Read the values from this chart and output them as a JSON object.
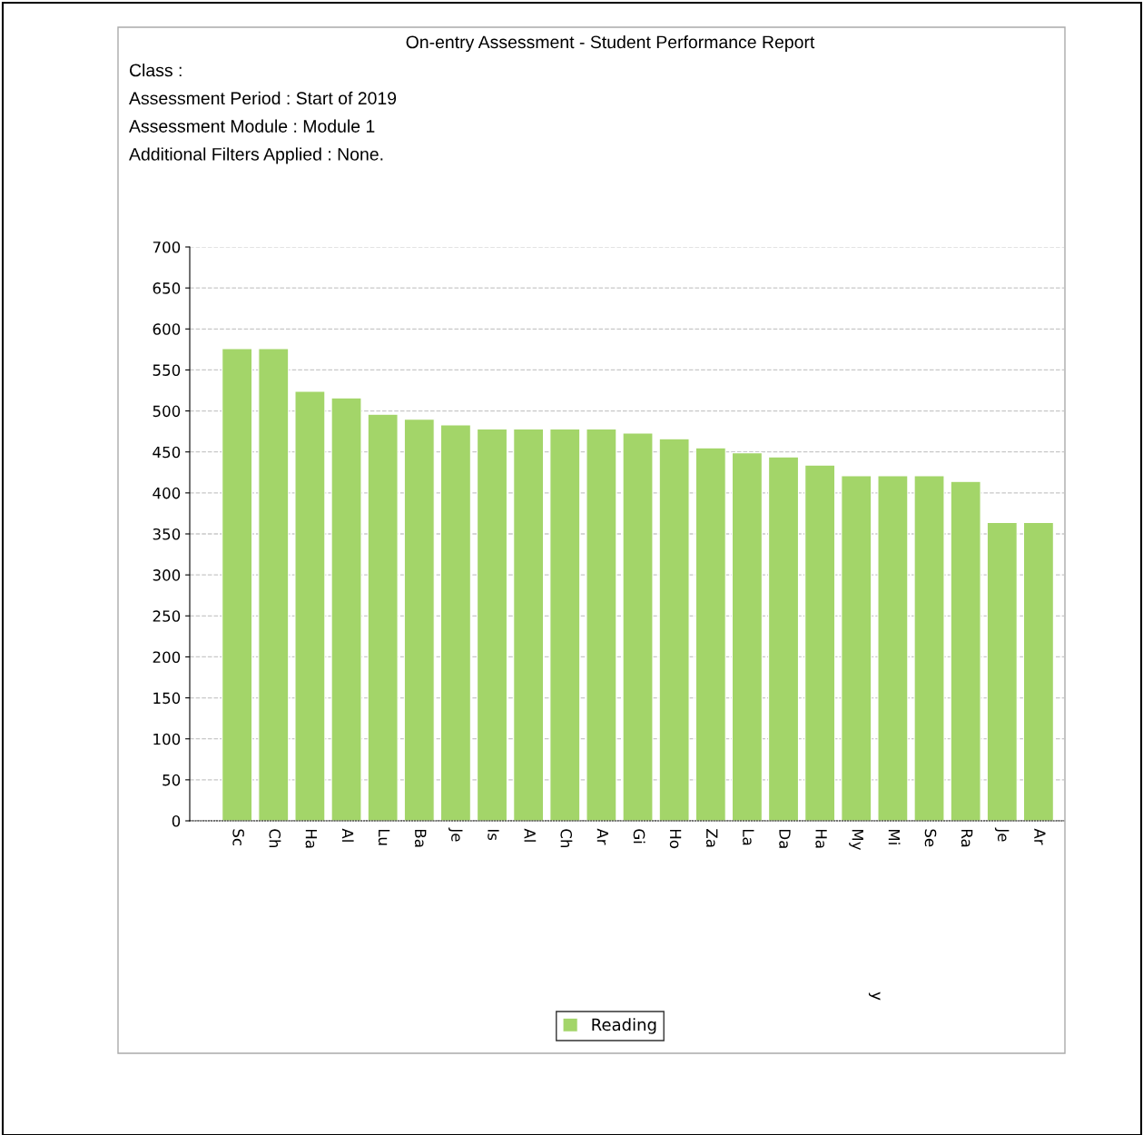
{
  "chart_data": {
    "type": "bar",
    "title": "On-entry Assessment - Student Performance Report",
    "subtitle": "Class :\nAssessment Period : Start of 2019\nAssessment Module : Module 1\nAdditional Filters Applied : None.",
    "categories": [
      "Sc",
      "Ch",
      "Ha",
      "Al",
      "Lu",
      "Ba",
      "Je",
      "Is",
      "Al",
      "Ch",
      "Ar",
      "Gi",
      "Ho",
      "Za",
      "La",
      "Da",
      "Ha",
      "My",
      "Mi",
      "Se",
      "Ra",
      "Je",
      "Ar"
    ],
    "series": [
      {
        "name": "Reading",
        "color": "#a3d569",
        "values": [
          576,
          576,
          524,
          516,
          496,
          490,
          483,
          478,
          478,
          478,
          478,
          473,
          466,
          455,
          449,
          444,
          434,
          421,
          421,
          421,
          414,
          364,
          364
        ]
      }
    ],
    "ylim": [
      0,
      700
    ],
    "yticks": [
      0,
      50,
      100,
      150,
      200,
      250,
      300,
      350,
      400,
      450,
      500,
      550,
      600,
      650,
      700
    ],
    "grid": "y",
    "legend": "bottom",
    "annotations": [
      "y"
    ]
  }
}
